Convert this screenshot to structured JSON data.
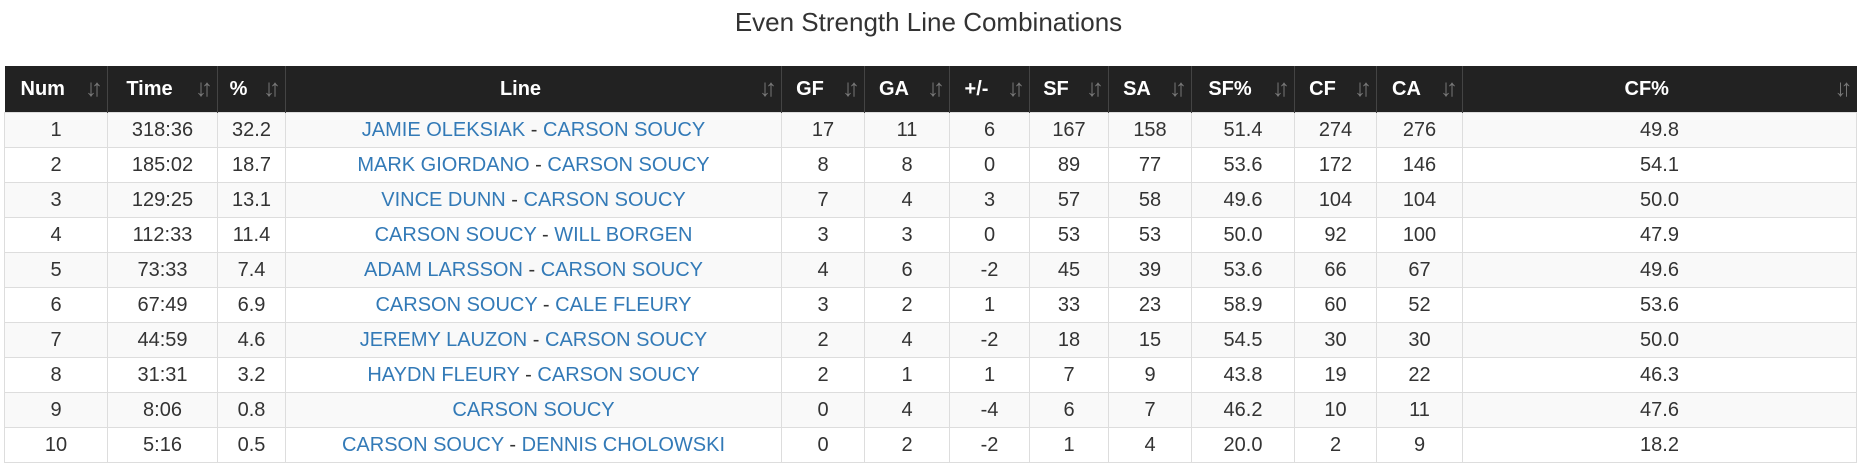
{
  "title": "Even Strength Line Combinations",
  "icons": {
    "sort": "sort-icon"
  },
  "colors": {
    "header_bg": "#222222",
    "link": "#337ab7",
    "stripe": "#f9f9f9"
  },
  "columns": [
    "Num",
    "Time",
    "%",
    "Line",
    "GF",
    "GA",
    "+/-",
    "SF",
    "SA",
    "SF%",
    "CF",
    "CA",
    "CF%"
  ],
  "separator": "-",
  "rows": [
    {
      "num": "1",
      "time": "318:36",
      "pct": "32.2",
      "players": [
        "JAMIE OLEKSIAK",
        "CARSON SOUCY"
      ],
      "gf": "17",
      "ga": "11",
      "pm": "6",
      "sf": "167",
      "sa": "158",
      "sfp": "51.4",
      "cf": "274",
      "ca": "276",
      "cfp": "49.8"
    },
    {
      "num": "2",
      "time": "185:02",
      "pct": "18.7",
      "players": [
        "MARK GIORDANO",
        "CARSON SOUCY"
      ],
      "gf": "8",
      "ga": "8",
      "pm": "0",
      "sf": "89",
      "sa": "77",
      "sfp": "53.6",
      "cf": "172",
      "ca": "146",
      "cfp": "54.1"
    },
    {
      "num": "3",
      "time": "129:25",
      "pct": "13.1",
      "players": [
        "VINCE DUNN",
        "CARSON SOUCY"
      ],
      "gf": "7",
      "ga": "4",
      "pm": "3",
      "sf": "57",
      "sa": "58",
      "sfp": "49.6",
      "cf": "104",
      "ca": "104",
      "cfp": "50.0"
    },
    {
      "num": "4",
      "time": "112:33",
      "pct": "11.4",
      "players": [
        "CARSON SOUCY",
        "WILL BORGEN"
      ],
      "gf": "3",
      "ga": "3",
      "pm": "0",
      "sf": "53",
      "sa": "53",
      "sfp": "50.0",
      "cf": "92",
      "ca": "100",
      "cfp": "47.9"
    },
    {
      "num": "5",
      "time": "73:33",
      "pct": "7.4",
      "players": [
        "ADAM LARSSON",
        "CARSON SOUCY"
      ],
      "gf": "4",
      "ga": "6",
      "pm": "-2",
      "sf": "45",
      "sa": "39",
      "sfp": "53.6",
      "cf": "66",
      "ca": "67",
      "cfp": "49.6"
    },
    {
      "num": "6",
      "time": "67:49",
      "pct": "6.9",
      "players": [
        "CARSON SOUCY",
        "CALE FLEURY"
      ],
      "gf": "3",
      "ga": "2",
      "pm": "1",
      "sf": "33",
      "sa": "23",
      "sfp": "58.9",
      "cf": "60",
      "ca": "52",
      "cfp": "53.6"
    },
    {
      "num": "7",
      "time": "44:59",
      "pct": "4.6",
      "players": [
        "JEREMY LAUZON",
        "CARSON SOUCY"
      ],
      "gf": "2",
      "ga": "4",
      "pm": "-2",
      "sf": "18",
      "sa": "15",
      "sfp": "54.5",
      "cf": "30",
      "ca": "30",
      "cfp": "50.0"
    },
    {
      "num": "8",
      "time": "31:31",
      "pct": "3.2",
      "players": [
        "HAYDN FLEURY",
        "CARSON SOUCY"
      ],
      "gf": "2",
      "ga": "1",
      "pm": "1",
      "sf": "7",
      "sa": "9",
      "sfp": "43.8",
      "cf": "19",
      "ca": "22",
      "cfp": "46.3"
    },
    {
      "num": "9",
      "time": "8:06",
      "pct": "0.8",
      "players": [
        "CARSON SOUCY"
      ],
      "gf": "0",
      "ga": "4",
      "pm": "-4",
      "sf": "6",
      "sa": "7",
      "sfp": "46.2",
      "cf": "10",
      "ca": "11",
      "cfp": "47.6"
    },
    {
      "num": "10",
      "time": "5:16",
      "pct": "0.5",
      "players": [
        "CARSON SOUCY",
        "DENNIS CHOLOWSKI"
      ],
      "gf": "0",
      "ga": "2",
      "pm": "-2",
      "sf": "1",
      "sa": "4",
      "sfp": "20.0",
      "cf": "2",
      "ca": "9",
      "cfp": "18.2"
    }
  ]
}
